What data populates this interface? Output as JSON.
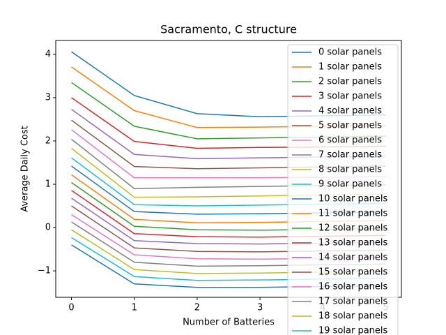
{
  "chart_data": {
    "type": "line",
    "title": "Sacramento, C structure",
    "x_label": "Number of Batteries",
    "y_label": "Average Daily Cost",
    "x": [
      0,
      1,
      2,
      3,
      4,
      5
    ],
    "xlim": [
      -0.25,
      5.25
    ],
    "xticks": [
      0,
      1,
      2,
      3,
      4,
      5
    ],
    "ylim": [
      -1.61,
      4.32
    ],
    "yticks": [
      {
        "value": -1,
        "label": "−1"
      },
      0,
      1,
      2,
      3,
      4
    ],
    "legend": "upper right",
    "series": [
      {
        "name": "0 solar panels",
        "color": "#1f77b4",
        "values": [
          4.06,
          3.05,
          2.63,
          2.56,
          2.58,
          2.6
        ]
      },
      {
        "name": "1 solar panels",
        "color": "#ff7f0e",
        "values": [
          3.71,
          2.7,
          2.31,
          2.32,
          2.34,
          2.36
        ]
      },
      {
        "name": "2 solar panels",
        "color": "#2ca02c",
        "values": [
          3.35,
          2.34,
          2.05,
          2.07,
          2.09,
          2.11
        ]
      },
      {
        "name": "3 solar panels",
        "color": "#d62728",
        "values": [
          3.0,
          1.99,
          1.83,
          1.85,
          1.86,
          1.88
        ]
      },
      {
        "name": "4 solar panels",
        "color": "#9467bd",
        "values": [
          2.73,
          1.69,
          1.59,
          1.61,
          1.63,
          1.65
        ]
      },
      {
        "name": "5 solar panels",
        "color": "#8c564b",
        "values": [
          2.48,
          1.41,
          1.36,
          1.38,
          1.4,
          1.42
        ]
      },
      {
        "name": "6 solar panels",
        "color": "#e377c2",
        "values": [
          2.26,
          1.15,
          1.15,
          1.15,
          1.16,
          1.18
        ]
      },
      {
        "name": "7 solar panels",
        "color": "#7f7f7f",
        "values": [
          2.04,
          0.9,
          0.93,
          0.95,
          0.97,
          0.99
        ]
      },
      {
        "name": "8 solar panels",
        "color": "#bcbd22",
        "values": [
          1.83,
          0.7,
          0.71,
          0.73,
          0.75,
          0.77
        ]
      },
      {
        "name": "9 solar panels",
        "color": "#17becf",
        "values": [
          1.61,
          0.53,
          0.5,
          0.52,
          0.54,
          0.56
        ]
      },
      {
        "name": "10 solar panels",
        "color": "#1f77b4",
        "values": [
          1.42,
          0.37,
          0.31,
          0.32,
          0.34,
          0.36
        ]
      },
      {
        "name": "11 solar panels",
        "color": "#ff7f0e",
        "values": [
          1.22,
          0.19,
          0.11,
          0.12,
          0.14,
          0.16
        ]
      },
      {
        "name": "12 solar panels",
        "color": "#2ca02c",
        "values": [
          1.04,
          0.03,
          -0.05,
          -0.06,
          -0.04,
          -0.02
        ]
      },
      {
        "name": "13 solar panels",
        "color": "#d62728",
        "values": [
          0.86,
          -0.14,
          -0.21,
          -0.22,
          -0.2,
          -0.18
        ]
      },
      {
        "name": "14 solar panels",
        "color": "#9467bd",
        "values": [
          0.68,
          -0.3,
          -0.37,
          -0.38,
          -0.36,
          -0.34
        ]
      },
      {
        "name": "15 solar panels",
        "color": "#8c564b",
        "values": [
          0.5,
          -0.47,
          -0.55,
          -0.56,
          -0.54,
          -0.52
        ]
      },
      {
        "name": "16 solar panels",
        "color": "#e377c2",
        "values": [
          0.3,
          -0.63,
          -0.72,
          -0.73,
          -0.71,
          -0.69
        ]
      },
      {
        "name": "17 solar panels",
        "color": "#7f7f7f",
        "values": [
          0.13,
          -0.8,
          -0.89,
          -0.88,
          -0.86,
          -0.84
        ]
      },
      {
        "name": "18 solar panels",
        "color": "#bcbd22",
        "values": [
          -0.05,
          -0.97,
          -1.06,
          -1.05,
          -1.03,
          -1.01
        ]
      },
      {
        "name": "19 solar panels",
        "color": "#17becf",
        "values": [
          -0.23,
          -1.13,
          -1.22,
          -1.21,
          -1.19,
          -1.17
        ]
      },
      {
        "name": null,
        "color": "#1f77b4",
        "values": [
          -0.4,
          -1.3,
          -1.38,
          -1.38,
          -1.36,
          -1.34
        ]
      }
    ]
  }
}
